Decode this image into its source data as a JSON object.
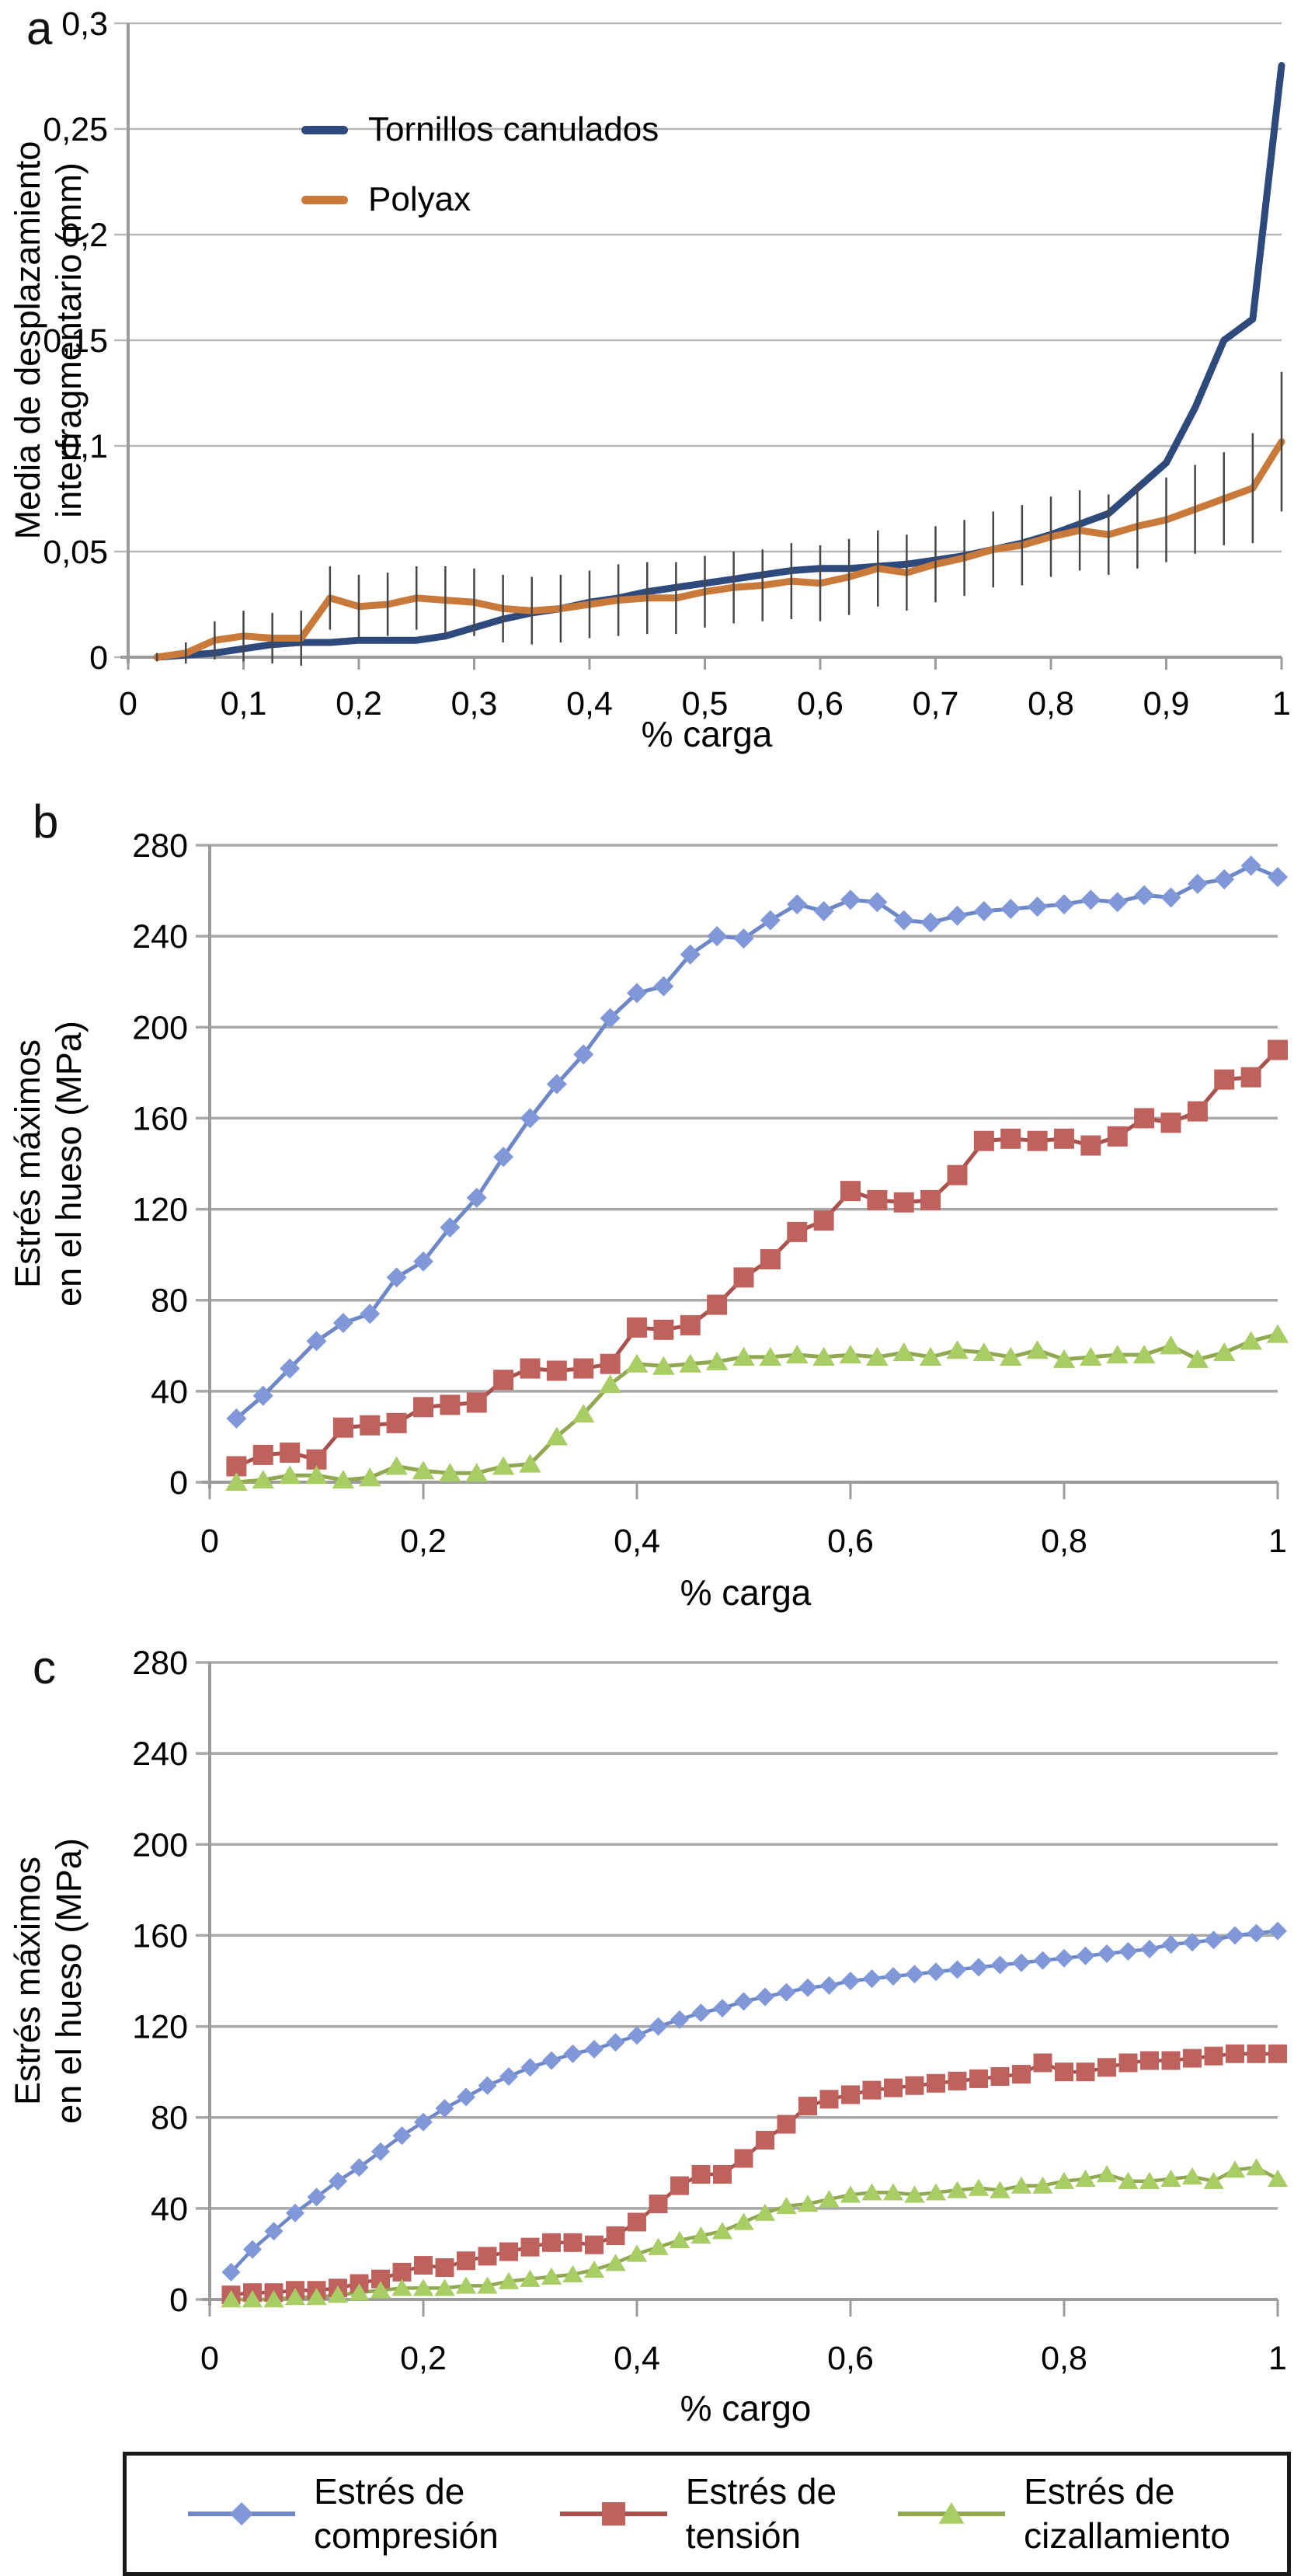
{
  "figure": {
    "background": "#ffffff",
    "grid_color_a": "#b9b9b9",
    "grid_color_bc": "#a8a8a8",
    "axis_color": "#9b9b9b",
    "error_bar_color": "#474747",
    "text_color": "#000000"
  },
  "panels": [
    {
      "letter": "a",
      "y_label_line1": "Media de desplazamiento",
      "y_label_line2": "interfragmentario (mm)",
      "x_label": "% carga",
      "chart_data": {
        "type": "line",
        "xlim": [
          0,
          1
        ],
        "ylim": [
          0,
          0.3
        ],
        "xtick_values": [
          0,
          0.1,
          0.2,
          0.3,
          0.4,
          0.5,
          0.6,
          0.7,
          0.8,
          0.9,
          1
        ],
        "xtick_labels": [
          "0",
          "0,1",
          "0,2",
          "0,3",
          "0,4",
          "0,5",
          "0,6",
          "0,7",
          "0,8",
          "0,9",
          "1"
        ],
        "ytick_values": [
          0,
          0.05,
          0.1,
          0.15,
          0.2,
          0.25,
          0.3
        ],
        "ytick_labels": [
          "0",
          "0,05",
          "0,1",
          "0,15",
          "0,2",
          "0,25",
          "0,3"
        ],
        "grid": true,
        "legend_position": "inside-top-left",
        "x": [
          0.025,
          0.05,
          0.075,
          0.1,
          0.125,
          0.15,
          0.175,
          0.2,
          0.225,
          0.25,
          0.275,
          0.3,
          0.325,
          0.35,
          0.375,
          0.4,
          0.425,
          0.45,
          0.475,
          0.5,
          0.525,
          0.55,
          0.575,
          0.6,
          0.625,
          0.65,
          0.675,
          0.7,
          0.725,
          0.75,
          0.775,
          0.8,
          0.825,
          0.85,
          0.875,
          0.9,
          0.925,
          0.95,
          0.975,
          1.0
        ],
        "series": [
          {
            "name": "Tornillos canulados",
            "color": "#2E4A7C",
            "marker": "none",
            "values": [
              0.0,
              0.001,
              0.002,
              0.004,
              0.006,
              0.007,
              0.007,
              0.008,
              0.008,
              0.008,
              0.01,
              0.014,
              0.018,
              0.021,
              0.023,
              0.026,
              0.028,
              0.031,
              0.033,
              0.035,
              0.037,
              0.039,
              0.041,
              0.042,
              0.042,
              0.043,
              0.044,
              0.046,
              0.048,
              0.051,
              0.054,
              0.058,
              0.063,
              0.068,
              0.08,
              0.092,
              0.118,
              0.15,
              0.16,
              0.28
            ]
          },
          {
            "name": "Polyax",
            "color": "#C9793A",
            "marker": "none",
            "values": [
              0.0,
              0.002,
              0.008,
              0.01,
              0.009,
              0.009,
              0.028,
              0.024,
              0.025,
              0.028,
              0.027,
              0.026,
              0.023,
              0.022,
              0.023,
              0.025,
              0.027,
              0.028,
              0.028,
              0.031,
              0.033,
              0.034,
              0.036,
              0.035,
              0.038,
              0.042,
              0.04,
              0.044,
              0.047,
              0.051,
              0.053,
              0.057,
              0.06,
              0.058,
              0.062,
              0.065,
              0.07,
              0.075,
              0.08,
              0.102
            ],
            "error": [
              0.002,
              0.005,
              0.009,
              0.012,
              0.012,
              0.013,
              0.015,
              0.015,
              0.015,
              0.015,
              0.016,
              0.016,
              0.016,
              0.016,
              0.016,
              0.016,
              0.017,
              0.017,
              0.017,
              0.017,
              0.017,
              0.017,
              0.018,
              0.018,
              0.018,
              0.018,
              0.018,
              0.018,
              0.018,
              0.018,
              0.019,
              0.019,
              0.019,
              0.019,
              0.02,
              0.02,
              0.021,
              0.022,
              0.026,
              0.033
            ]
          }
        ]
      }
    },
    {
      "letter": "b",
      "y_label_line1": "Estrés máximos",
      "y_label_line2": "en el hueso (MPa)",
      "x_label": "% carga",
      "chart_data": {
        "type": "line",
        "xlim": [
          0,
          1
        ],
        "ylim": [
          0,
          280
        ],
        "xtick_values": [
          0,
          0.2,
          0.4,
          0.6,
          0.8,
          1
        ],
        "xtick_labels": [
          "0",
          "0,2",
          "0,4",
          "0,6",
          "0,8",
          "1"
        ],
        "ytick_values": [
          0,
          40,
          80,
          120,
          160,
          200,
          240,
          280
        ],
        "ytick_labels": [
          "0",
          "40",
          "80",
          "120",
          "160",
          "200",
          "240",
          "280"
        ],
        "grid": true,
        "x": [
          0.025,
          0.05,
          0.075,
          0.1,
          0.125,
          0.15,
          0.175,
          0.2,
          0.225,
          0.25,
          0.275,
          0.3,
          0.325,
          0.35,
          0.375,
          0.4,
          0.425,
          0.45,
          0.475,
          0.5,
          0.525,
          0.55,
          0.575,
          0.6,
          0.625,
          0.65,
          0.675,
          0.7,
          0.725,
          0.75,
          0.775,
          0.8,
          0.825,
          0.85,
          0.875,
          0.9,
          0.925,
          0.95,
          0.975,
          1.0
        ],
        "series": [
          {
            "name": "Estrés de compresión",
            "color": "#6E87C6",
            "marker_color": "#8098D8",
            "marker": "diamond",
            "values": [
              28,
              38,
              50,
              62,
              70,
              74,
              90,
              97,
              112,
              125,
              143,
              160,
              175,
              188,
              204,
              215,
              218,
              232,
              240,
              239,
              247,
              254,
              251,
              256,
              255,
              247,
              246,
              249,
              251,
              252,
              253,
              254,
              256,
              255,
              258,
              257,
              263,
              265,
              271,
              266
            ]
          },
          {
            "name": "Estrés de tensión",
            "color": "#A9524D",
            "marker_color": "#BF625D",
            "marker": "square",
            "values": [
              7,
              12,
              13,
              10,
              24,
              25,
              26,
              33,
              34,
              35,
              45,
              50,
              49,
              50,
              52,
              68,
              67,
              69,
              78,
              90,
              98,
              110,
              115,
              128,
              124,
              123,
              124,
              135,
              150,
              151,
              150,
              151,
              148,
              152,
              160,
              158,
              163,
              177,
              178,
              190
            ]
          },
          {
            "name": "Estrés de cizallamiento",
            "color": "#90A851",
            "marker_color": "#A8CD65",
            "marker": "triangle",
            "values": [
              0,
              1,
              3,
              3,
              1,
              2,
              7,
              5,
              4,
              4,
              7,
              8,
              20,
              30,
              43,
              52,
              51,
              52,
              53,
              55,
              55,
              56,
              55,
              56,
              55,
              57,
              55,
              58,
              57,
              55,
              58,
              54,
              55,
              56,
              56,
              60,
              54,
              57,
              62,
              65
            ]
          }
        ]
      }
    },
    {
      "letter": "c",
      "y_label_line1": "Estrés máximos",
      "y_label_line2": "en el hueso (MPa)",
      "x_label": "% cargo",
      "chart_data": {
        "type": "line",
        "xlim": [
          0,
          1
        ],
        "ylim": [
          0,
          280
        ],
        "xtick_values": [
          0,
          0.2,
          0.4,
          0.6,
          0.8,
          1
        ],
        "xtick_labels": [
          "0",
          "0,2",
          "0,4",
          "0,6",
          "0,8",
          "1"
        ],
        "ytick_values": [
          0,
          40,
          80,
          120,
          160,
          200,
          240,
          280
        ],
        "ytick_labels": [
          "0",
          "40",
          "80",
          "120",
          "160",
          "200",
          "240",
          "280"
        ],
        "grid": true,
        "x": [
          0.02,
          0.04,
          0.06,
          0.08,
          0.1,
          0.12,
          0.14,
          0.16,
          0.18,
          0.2,
          0.22,
          0.24,
          0.26,
          0.28,
          0.3,
          0.32,
          0.34,
          0.36,
          0.38,
          0.4,
          0.42,
          0.44,
          0.46,
          0.48,
          0.5,
          0.52,
          0.54,
          0.56,
          0.58,
          0.6,
          0.62,
          0.64,
          0.66,
          0.68,
          0.7,
          0.72,
          0.74,
          0.76,
          0.78,
          0.8,
          0.82,
          0.84,
          0.86,
          0.88,
          0.9,
          0.92,
          0.94,
          0.96,
          0.98,
          1.0
        ],
        "series": [
          {
            "name": "Estrés de compresión",
            "color": "#6E87C6",
            "marker_color": "#8098D8",
            "marker": "diamond",
            "values": [
              12,
              22,
              30,
              38,
              45,
              52,
              58,
              65,
              72,
              78,
              84,
              89,
              94,
              98,
              102,
              105,
              108,
              110,
              113,
              116,
              120,
              123,
              126,
              128,
              131,
              133,
              135,
              137,
              138,
              140,
              141,
              142,
              143,
              144,
              145,
              146,
              147,
              148,
              149,
              150,
              151,
              152,
              153,
              154,
              156,
              157,
              158,
              160,
              161,
              162
            ]
          },
          {
            "name": "Estrés de tensión",
            "color": "#A9524D",
            "marker_color": "#BF625D",
            "marker": "square",
            "values": [
              2,
              3,
              3,
              4,
              4,
              5,
              7,
              9,
              12,
              15,
              14,
              17,
              19,
              21,
              23,
              25,
              25,
              24,
              28,
              34,
              42,
              50,
              55,
              55,
              62,
              70,
              77,
              85,
              88,
              90,
              92,
              93,
              94,
              95,
              96,
              97,
              98,
              99,
              104,
              100,
              100,
              102,
              104,
              105,
              105,
              106,
              107,
              108,
              108,
              108
            ]
          },
          {
            "name": "Estrés de cizallamiento",
            "color": "#90A851",
            "marker_color": "#A8CD65",
            "marker": "triangle",
            "values": [
              0,
              0,
              0,
              1,
              1,
              2,
              3,
              4,
              5,
              5,
              5,
              6,
              6,
              8,
              9,
              10,
              11,
              13,
              16,
              20,
              23,
              26,
              28,
              30,
              34,
              38,
              41,
              42,
              44,
              46,
              47,
              47,
              46,
              47,
              48,
              49,
              48,
              50,
              50,
              52,
              53,
              55,
              52,
              52,
              53,
              54,
              52,
              57,
              58,
              53
            ]
          }
        ]
      }
    }
  ],
  "bottom_legend": {
    "entries": [
      {
        "label_line1": "Estrés de",
        "label_line2": "compresión",
        "marker": "diamond"
      },
      {
        "label_line1": "Estrés de",
        "label_line2": "tensión",
        "marker": "square"
      },
      {
        "label_line1": "Estrés de",
        "label_line2": "cizallamiento",
        "marker": "triangle"
      }
    ]
  }
}
